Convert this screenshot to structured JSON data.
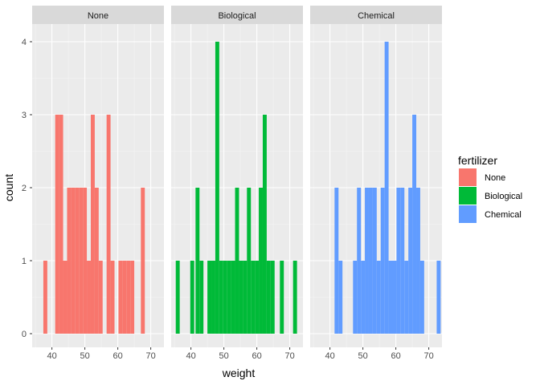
{
  "chart_data": {
    "type": "bar",
    "chart_subtype": "faceted-histogram",
    "xlabel": "weight",
    "ylabel": "count",
    "xlim": [
      34,
      74
    ],
    "ylim": [
      0,
      4
    ],
    "x_ticks": [
      40,
      50,
      60,
      70
    ],
    "y_ticks": [
      0,
      1,
      2,
      3,
      4
    ],
    "grid": true,
    "bin_width": 1.2,
    "legend": {
      "title": "fertilizer",
      "placement": "right",
      "entries": [
        "None",
        "Biological",
        "Chemical"
      ]
    },
    "facets": [
      {
        "name": "None",
        "color": "#F8766D",
        "bins": [
          {
            "x": 38.0,
            "count": 1
          },
          {
            "x": 41.6,
            "count": 3
          },
          {
            "x": 42.8,
            "count": 3
          },
          {
            "x": 44.0,
            "count": 1
          },
          {
            "x": 45.2,
            "count": 2
          },
          {
            "x": 46.4,
            "count": 2
          },
          {
            "x": 47.6,
            "count": 2
          },
          {
            "x": 48.8,
            "count": 2
          },
          {
            "x": 50.0,
            "count": 2
          },
          {
            "x": 51.2,
            "count": 1
          },
          {
            "x": 52.4,
            "count": 3
          },
          {
            "x": 53.6,
            "count": 2
          },
          {
            "x": 54.8,
            "count": 1
          },
          {
            "x": 57.2,
            "count": 3
          },
          {
            "x": 58.4,
            "count": 1
          },
          {
            "x": 60.8,
            "count": 1
          },
          {
            "x": 62.0,
            "count": 1
          },
          {
            "x": 63.2,
            "count": 1
          },
          {
            "x": 64.4,
            "count": 1
          },
          {
            "x": 67.6,
            "count": 2
          }
        ]
      },
      {
        "name": "Biological",
        "color": "#00BA38",
        "bins": [
          {
            "x": 36.0,
            "count": 1
          },
          {
            "x": 40.4,
            "count": 1
          },
          {
            "x": 42.0,
            "count": 2
          },
          {
            "x": 43.2,
            "count": 1
          },
          {
            "x": 45.6,
            "count": 1
          },
          {
            "x": 46.8,
            "count": 1
          },
          {
            "x": 48.0,
            "count": 4
          },
          {
            "x": 49.2,
            "count": 1
          },
          {
            "x": 50.4,
            "count": 1
          },
          {
            "x": 51.6,
            "count": 1
          },
          {
            "x": 52.8,
            "count": 1
          },
          {
            "x": 54.0,
            "count": 2
          },
          {
            "x": 55.2,
            "count": 1
          },
          {
            "x": 56.4,
            "count": 1
          },
          {
            "x": 57.6,
            "count": 2
          },
          {
            "x": 58.8,
            "count": 1
          },
          {
            "x": 60.0,
            "count": 1
          },
          {
            "x": 61.2,
            "count": 2
          },
          {
            "x": 62.4,
            "count": 3
          },
          {
            "x": 63.6,
            "count": 1
          },
          {
            "x": 64.8,
            "count": 1
          },
          {
            "x": 67.6,
            "count": 1
          },
          {
            "x": 71.6,
            "count": 1
          }
        ]
      },
      {
        "name": "Chemical",
        "color": "#619CFF",
        "bins": [
          {
            "x": 42.0,
            "count": 2
          },
          {
            "x": 43.2,
            "count": 1
          },
          {
            "x": 47.6,
            "count": 1
          },
          {
            "x": 48.8,
            "count": 2
          },
          {
            "x": 50.0,
            "count": 1
          },
          {
            "x": 51.2,
            "count": 2
          },
          {
            "x": 52.4,
            "count": 2
          },
          {
            "x": 53.6,
            "count": 2
          },
          {
            "x": 54.8,
            "count": 1
          },
          {
            "x": 56.0,
            "count": 2
          },
          {
            "x": 57.2,
            "count": 4
          },
          {
            "x": 58.4,
            "count": 1
          },
          {
            "x": 59.6,
            "count": 1
          },
          {
            "x": 60.8,
            "count": 2
          },
          {
            "x": 62.0,
            "count": 2
          },
          {
            "x": 63.2,
            "count": 1
          },
          {
            "x": 64.4,
            "count": 2
          },
          {
            "x": 65.6,
            "count": 3
          },
          {
            "x": 66.8,
            "count": 2
          },
          {
            "x": 68.0,
            "count": 1
          },
          {
            "x": 73.0,
            "count": 1
          }
        ]
      }
    ]
  }
}
